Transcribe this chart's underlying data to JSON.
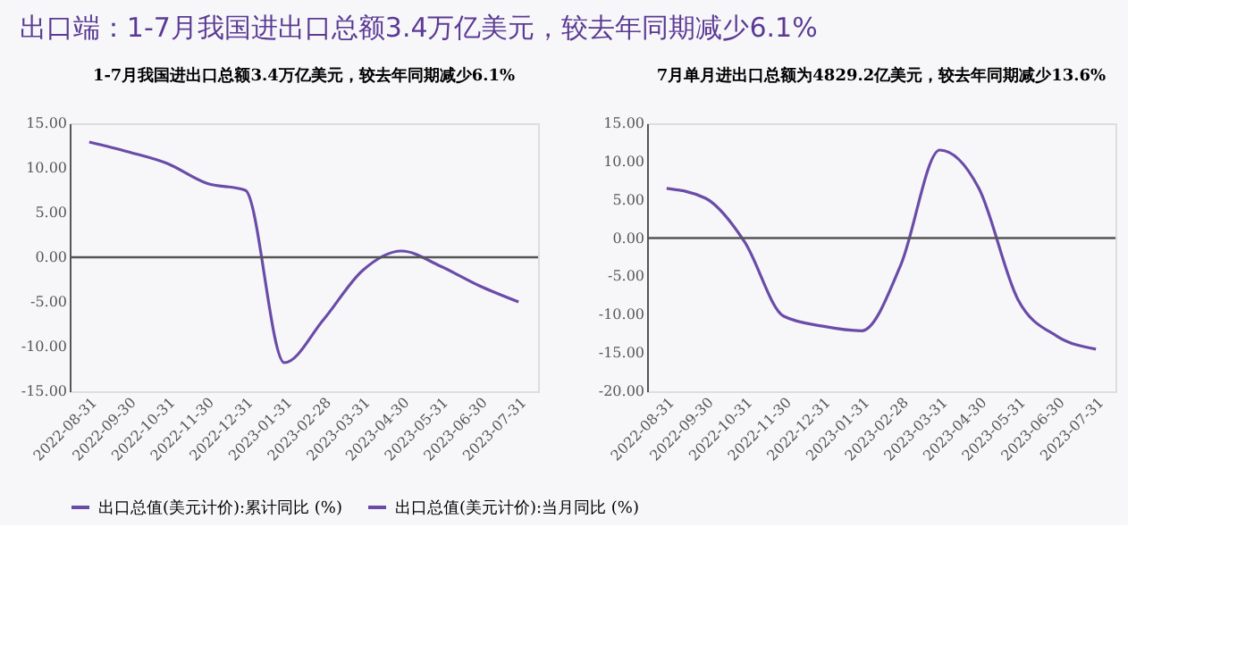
{
  "chart_data": [
    {
      "type": "line",
      "title": "1-7月我国进出口总额3.4万亿美元，较去年同期减少6.1%",
      "annotations": [
        "出口端：1-7月我国进出口总额3.4万亿美元，较去年同期减少6.1%"
      ],
      "categories": [
        "2022-08-31",
        "2022-09-30",
        "2022-10-31",
        "2022-11-30",
        "2022-12-31",
        "2023-01-31",
        "2023-02-28",
        "2023-03-31",
        "2023-04-30",
        "2023-05-31",
        "2023-06-30",
        "2023-07-31"
      ],
      "series": [
        {
          "name": "出口总值(美元计价):累计同比 (%)",
          "color": "#6a4ca8",
          "values": [
            12.9,
            11.8,
            10.5,
            8.3,
            7.5,
            -11.8,
            -7.0,
            -1.5,
            0.7,
            -1.0,
            -3.2,
            -5.0
          ]
        }
      ],
      "ylim": [
        -15,
        15
      ],
      "yticks": [
        {
          "value": -15,
          "label": "-15.00"
        },
        {
          "value": -10,
          "label": "-10.00"
        },
        {
          "value": -5,
          "label": "-5.00"
        },
        {
          "value": 0,
          "label": "0.00"
        },
        {
          "value": 5,
          "label": "5.00"
        },
        {
          "value": 10,
          "label": "10.00"
        },
        {
          "value": 15,
          "label": "15.00"
        }
      ],
      "ref_lines": [
        {
          "axis": "y",
          "value": 0,
          "color": "#555555"
        }
      ],
      "grid": false,
      "legend": "bottom",
      "marker": "none",
      "line_style": "solid"
    },
    {
      "type": "line",
      "title": "7月单月进出口总额为4829.2亿美元，较去年同期减少13.6%",
      "categories": [
        "2022-08-31",
        "2022-09-30",
        "2022-10-31",
        "2022-11-30",
        "2022-12-31",
        "2023-01-31",
        "2023-02-28",
        "2023-03-31",
        "2023-04-30",
        "2023-05-31",
        "2023-06-30",
        "2023-07-31"
      ],
      "series": [
        {
          "name": "出口总值(美元计价):当月同比 (%)",
          "color": "#6a4ca8",
          "values": [
            6.5,
            5.2,
            -0.5,
            -10.2,
            -11.5,
            -12.1,
            -3.5,
            11.5,
            6.5,
            -8.0,
            -12.8,
            -14.5
          ]
        }
      ],
      "ylim": [
        -20,
        15
      ],
      "yticks": [
        {
          "value": -20,
          "label": "-20.00"
        },
        {
          "value": -15,
          "label": "-15.00"
        },
        {
          "value": -10,
          "label": "-10.00"
        },
        {
          "value": -5,
          "label": "-5.00"
        },
        {
          "value": 0,
          "label": "0.00"
        },
        {
          "value": 5,
          "label": "5.00"
        },
        {
          "value": 10,
          "label": "10.00"
        },
        {
          "value": 15,
          "label": "15.00"
        }
      ],
      "ref_lines": [
        {
          "axis": "y",
          "value": 0,
          "color": "#555555"
        }
      ],
      "grid": false,
      "legend": "bottom",
      "marker": "none",
      "line_style": "solid"
    }
  ]
}
